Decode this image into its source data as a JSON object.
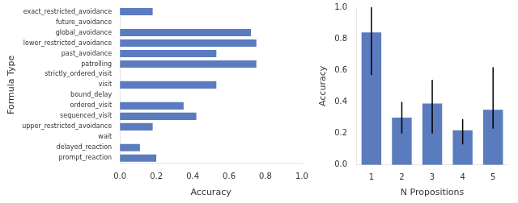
{
  "chart_data": [
    {
      "type": "bar",
      "orientation": "horizontal",
      "categories": [
        "exact_restricted_avoidance",
        "future_avoidance",
        "global_avoidance",
        "lower_restricted_avoidance",
        "past_avoidance",
        "patrolling",
        "strictly_ordered_visit",
        "visit",
        "bound_delay",
        "ordered_visit",
        "sequenced_visit",
        "upper_restricted_avoidance",
        "wait",
        "delayed_reaction",
        "prompt_reaction"
      ],
      "values": [
        0.18,
        0.0,
        0.72,
        0.75,
        0.53,
        0.75,
        0.0,
        0.53,
        0.0,
        0.35,
        0.42,
        0.18,
        0.0,
        0.11,
        0.2
      ],
      "color": "#5b7bbf",
      "xlabel": "Accuracy",
      "ylabel": "Formula Type",
      "xlim": [
        0,
        1.0
      ],
      "xticks": [
        {
          "value": 0,
          "label": "0.0"
        },
        0.2,
        0.4,
        0.6,
        0.8,
        {
          "value": 1,
          "label": "1.0"
        }
      ],
      "grid": false
    },
    {
      "type": "bar",
      "x": [
        1,
        2,
        3,
        4,
        5
      ],
      "values": [
        0.84,
        0.3,
        0.39,
        0.22,
        0.35
      ],
      "errors_lower": [
        0.27,
        0.1,
        0.19,
        0.09,
        0.12
      ],
      "errors_upper": [
        0.16,
        0.1,
        0.15,
        0.07,
        0.27
      ],
      "color": "#5b7bbf",
      "xlabel": "N Propositions",
      "ylabel": "Accuracy",
      "ylim": [
        0.0,
        1.0
      ],
      "yticks": [
        {
          "value": 0,
          "label": "0.0"
        },
        0.2,
        0.4,
        0.6,
        0.8,
        {
          "value": 1,
          "label": "1.0"
        }
      ],
      "grid": false
    }
  ]
}
